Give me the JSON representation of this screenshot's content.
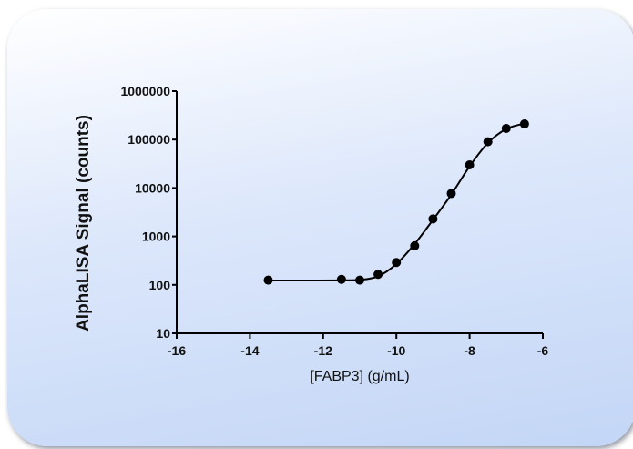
{
  "chart_data": {
    "type": "line",
    "xlabel": "[FABP3] (g/mL)",
    "ylabel": "AlphaLISA Signal (counts)",
    "xlim": [
      -16,
      -6
    ],
    "ylim": [
      10,
      1000000
    ],
    "yscale": "log",
    "x_ticks": [
      -16,
      -14,
      -12,
      -10,
      -8,
      -6
    ],
    "x_tick_labels": [
      "-16",
      "-14",
      "-12",
      "-10",
      "-8",
      "-6"
    ],
    "y_ticks": [
      10,
      100,
      1000,
      10000,
      100000,
      1000000
    ],
    "y_tick_labels": [
      "10",
      "100",
      "1000",
      "10000",
      "100000",
      "1000000"
    ],
    "grid": false,
    "series": [
      {
        "x": [
          -13.5,
          -11.5,
          -11,
          -10.5,
          -10,
          -9.5,
          -9,
          -8.5,
          -8,
          -7.5,
          -7,
          -6.5
        ],
        "y": [
          125,
          130,
          125,
          165,
          290,
          640,
          2300,
          7700,
          30000,
          90000,
          170000,
          210000
        ],
        "fit_curve": [
          [
            -13.5,
            123
          ],
          [
            -12.5,
            123
          ],
          [
            -11.5,
            124
          ],
          [
            -11,
            127
          ],
          [
            -10.5,
            150
          ],
          [
            -10,
            270
          ],
          [
            -9.5,
            700
          ],
          [
            -9,
            2200
          ],
          [
            -8.5,
            7300
          ],
          [
            -8,
            28000
          ],
          [
            -7.5,
            85000
          ],
          [
            -7,
            165000
          ],
          [
            -6.5,
            215000
          ]
        ]
      }
    ],
    "colors": {
      "line": "#000000",
      "marker": "#000000"
    }
  }
}
